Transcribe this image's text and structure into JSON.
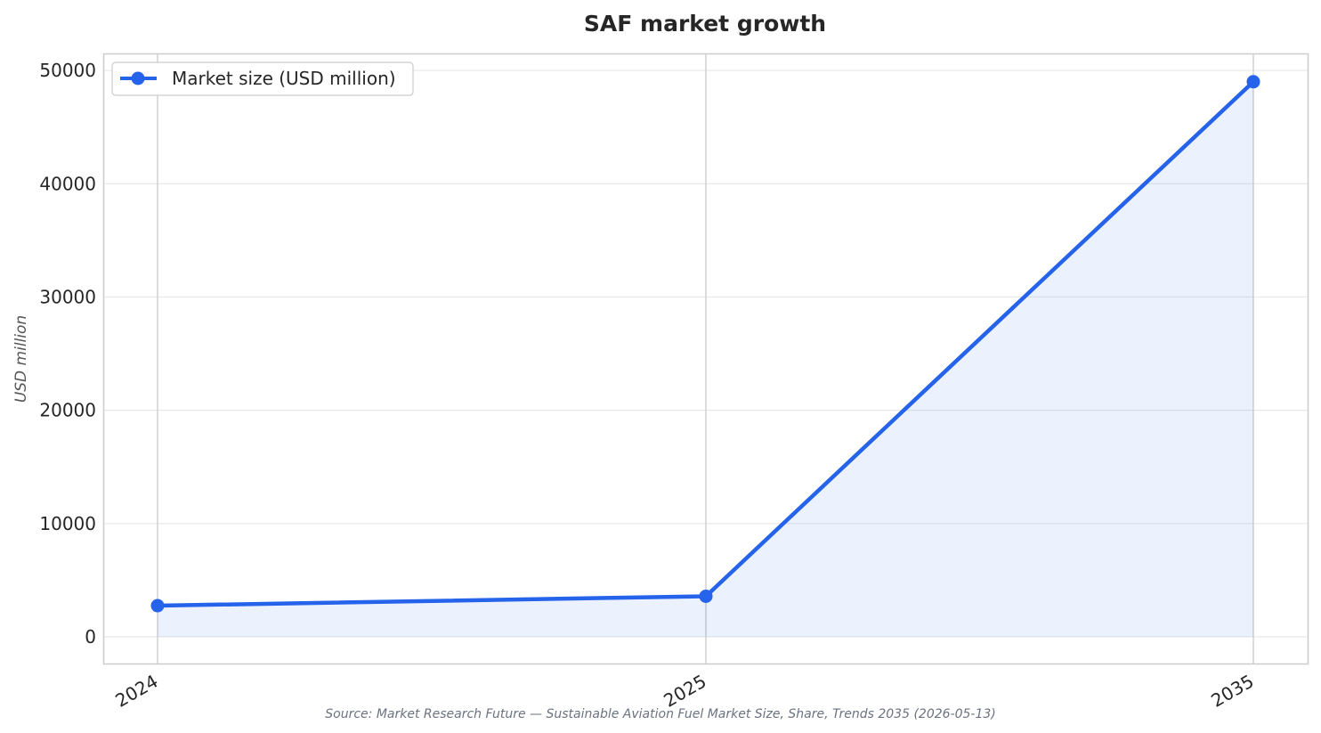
{
  "chart_data": {
    "type": "line",
    "title": "SAF market growth",
    "xlabel": "",
    "ylabel": "USD million",
    "categories": [
      "2024",
      "2025",
      "2035"
    ],
    "series": [
      {
        "name": "Market size (USD million)",
        "values": [
          2750,
          3580,
          49000
        ],
        "color": "#2563eb",
        "fill": true
      }
    ],
    "ylim": [
      -2360,
      51500
    ],
    "yticks": [
      0,
      10000,
      20000,
      30000,
      40000,
      50000
    ],
    "grid": true,
    "legend": "top-left",
    "source": "Source: Market Research Future — Sustainable Aviation Fuel Market Size, Share, Trends 2035 (2026-05-13)"
  }
}
